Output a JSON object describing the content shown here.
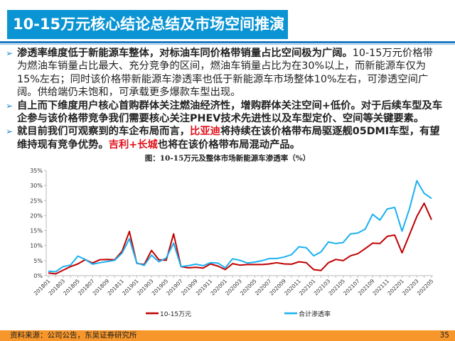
{
  "header": {
    "title": "10-15万元核心结论总结及市场空间推演"
  },
  "bullets": [
    {
      "bold": "渗透率维度低于新能源车整体，对标油车同价格带销量占比空间极为广阔。",
      "normal": "10-15万元价格带为燃油车销量占比最大、充分竞争的区间，燃油车销量占比为在30%以上，而新能源车仅为15%左右；同时该价格带新能源车渗透率也低于新能源车市场整体10%左右，可渗透空间广阔。供给端仍未饱和，可承载更多爆款车型出现。"
    },
    {
      "bold": "自上而下维度用户核心首购群体关注燃油经济性，增购群体关注空间+低价。对于后续车型及车企参与该价格带竞争我们需要核心关注PHEV技术先进性以及车型定价、空间等关键要素。"
    },
    {
      "seg1": "就目前我们可观察到的车企布局而言，",
      "red1": "比亚迪",
      "seg2": "将持续在该价格带布局驱逐舰05DMI车型，有望维持现有竞争优势。",
      "red2": "吉利+长城",
      "seg3": "也将在该价格带布局混动产品。"
    }
  ],
  "chart_data": {
    "type": "line",
    "title": "图：10-15万元及整体市场新能源车渗透率（%）",
    "xlabel": "",
    "ylabel": "",
    "ylim": [
      0,
      35
    ],
    "yticks": [
      "0%",
      "5%",
      "10%",
      "15%",
      "20%",
      "25%",
      "30%",
      "35%"
    ],
    "x": [
      "201801",
      "201802",
      "201803",
      "201804",
      "201805",
      "201806",
      "201807",
      "201808",
      "201809",
      "201810",
      "201811",
      "201812",
      "201901",
      "201902",
      "201903",
      "201904",
      "201905",
      "201906",
      "201907",
      "201908",
      "201909",
      "201910",
      "201911",
      "201912",
      "202001",
      "202002",
      "202003",
      "202004",
      "202005",
      "202006",
      "202007",
      "202008",
      "202009",
      "202010",
      "202011",
      "202012",
      "202101",
      "202102",
      "202103",
      "202104",
      "202105",
      "202106",
      "202107",
      "202108",
      "202109",
      "202110",
      "202111",
      "202112",
      "202201",
      "202202",
      "202203",
      "202204",
      "202205"
    ],
    "series": [
      {
        "name": "10-15万元",
        "color": "#c00000",
        "values": [
          0.9,
          0.6,
          1.8,
          3.0,
          3.9,
          5.3,
          4.2,
          5.3,
          5.4,
          5.3,
          8.1,
          14.7,
          4.1,
          3.7,
          8.4,
          5.3,
          5.1,
          13.9,
          3.0,
          2.6,
          2.8,
          2.5,
          3.9,
          3.2,
          2.0,
          4.0,
          3.5,
          3.7,
          3.7,
          3.7,
          3.9,
          4.3,
          3.9,
          3.8,
          4.6,
          4.3,
          2.0,
          1.7,
          4.3,
          5.4,
          5.0,
          6.6,
          7.3,
          9.0,
          10.8,
          10.7,
          13.1,
          13.5,
          7.6,
          13.6,
          19.7,
          24.1,
          18.6
        ]
      },
      {
        "name": "合计渗透率",
        "color": "#1ab0f0",
        "values": [
          1.5,
          1.3,
          3.0,
          3.5,
          6.5,
          5.4,
          3.8,
          4.3,
          4.7,
          5.1,
          7.5,
          12.3,
          4.2,
          3.4,
          6.8,
          4.6,
          5.9,
          10.8,
          3.0,
          3.3,
          3.8,
          3.3,
          4.3,
          4.2,
          2.6,
          5.6,
          5.1,
          4.2,
          4.5,
          5.0,
          5.7,
          5.7,
          6.2,
          7.0,
          9.6,
          9.3,
          6.6,
          7.9,
          11.2,
          10.7,
          11.0,
          13.9,
          14.2,
          15.5,
          20.4,
          18.5,
          22.2,
          22.7,
          14.8,
          22.2,
          31.6,
          27.4,
          25.7
        ]
      }
    ],
    "grid": false,
    "legend": "bottom"
  },
  "footer": {
    "source": "资料来源：公司公告，东吴证券研究所",
    "page": "35"
  }
}
